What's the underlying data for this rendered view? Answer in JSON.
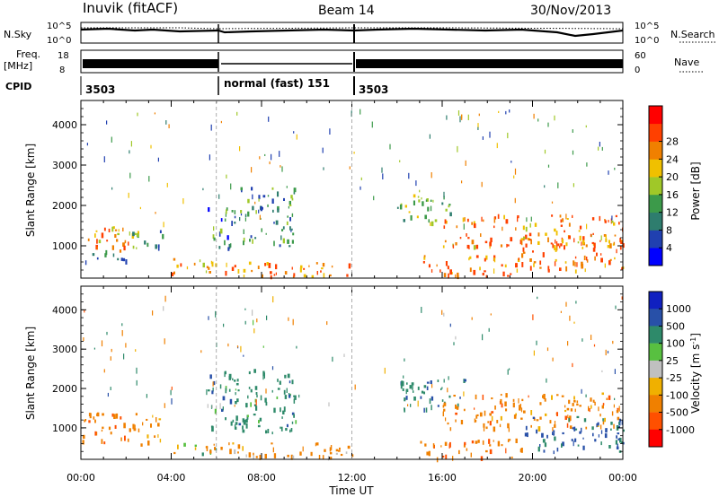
{
  "header": {
    "station": "Inuvik (fitACF)",
    "beam": "Beam 14",
    "date": "30/Nov/2013"
  },
  "summary_panels": {
    "nsky_label": "N.Sky",
    "nsky_ticks": [
      "10^5",
      "10^0"
    ],
    "nsearch_label": "N.Search",
    "nsearch_ticks": [
      "10^5",
      "10^0"
    ],
    "freq_label_top": "Freq.",
    "freq_label_bottom": "[MHz]",
    "freq_ticks": [
      "18",
      "8"
    ],
    "nave_label": "Nave",
    "nave_ticks": [
      "60",
      "0"
    ],
    "cpid_label": "CPID",
    "cpid_segments": [
      {
        "label": "3503",
        "start": 0,
        "end": 6
      },
      {
        "label": "normal (fast) 151",
        "start": 6,
        "end": 12
      },
      {
        "label": "3503",
        "start": 12,
        "end": 24
      }
    ]
  },
  "chart_data": [
    {
      "type": "heatmap",
      "parameter": "power",
      "xlabel": "",
      "ylabel": "Slant Range [km]",
      "xlim": [
        0,
        24
      ],
      "ylim": [
        200,
        4600
      ],
      "x_ticks": [
        "00:00",
        "04:00",
        "08:00",
        "12:00",
        "16:00",
        "20:00",
        "00:00"
      ],
      "y_ticks": [
        1000,
        2000,
        3000,
        4000
      ],
      "colorbar": {
        "label": "Power [dB]",
        "ticks": [
          "4",
          "8",
          "12",
          "16",
          "20",
          "24",
          "28"
        ],
        "colors": [
          "#0000ff",
          "#2040b0",
          "#2e7d6e",
          "#3c9a4a",
          "#a0c828",
          "#f0c000",
          "#f08000",
          "#ff4000",
          "#ff0000"
        ]
      },
      "regions": [
        {
          "t0": 0.0,
          "t1": 2.8,
          "r0": 900,
          "r1": 1500,
          "level": 24
        },
        {
          "t0": 0.0,
          "t1": 2.0,
          "r0": 600,
          "r1": 900,
          "level": 12
        },
        {
          "t0": 2.0,
          "t1": 3.6,
          "r0": 900,
          "r1": 1400,
          "level": 14
        },
        {
          "t0": 4.0,
          "t1": 6.0,
          "r0": 300,
          "r1": 700,
          "level": 22
        },
        {
          "t0": 5.5,
          "t1": 12.0,
          "r0": 250,
          "r1": 650,
          "level": 28
        },
        {
          "t0": 5.6,
          "t1": 6.8,
          "r0": 900,
          "r1": 2000,
          "level": 10
        },
        {
          "t0": 7.0,
          "t1": 9.5,
          "r0": 1000,
          "r1": 2500,
          "level": 12
        },
        {
          "t0": 14.0,
          "t1": 16.5,
          "r0": 1600,
          "r1": 2300,
          "level": 16
        },
        {
          "t0": 16.0,
          "t1": 24.0,
          "r0": 1000,
          "r1": 1800,
          "level": 26
        },
        {
          "t0": 15.0,
          "t1": 19.5,
          "r0": 250,
          "r1": 800,
          "level": 28
        },
        {
          "t0": 19.5,
          "t1": 24.0,
          "r0": 400,
          "r1": 1300,
          "level": 28
        }
      ]
    },
    {
      "type": "heatmap",
      "parameter": "velocity",
      "xlabel": "Time UT",
      "ylabel": "Slant Range [km]",
      "xlim": [
        0,
        24
      ],
      "ylim": [
        200,
        4600
      ],
      "x_ticks": [
        "00:00",
        "04:00",
        "08:00",
        "12:00",
        "16:00",
        "20:00",
        "00:00"
      ],
      "y_ticks": [
        1000,
        2000,
        3000,
        4000
      ],
      "colorbar": {
        "label": "Velocity [m s^-1]",
        "ticks": [
          "1000",
          "500",
          "100",
          "25",
          "-25",
          "-100",
          "-500",
          "-1000"
        ],
        "colors": [
          "#1020c0",
          "#2850a8",
          "#2e8a6a",
          "#58c040",
          "#c0c0c0",
          "#f0b000",
          "#f08000",
          "#ff5000",
          "#ff0000"
        ]
      },
      "regions": [
        {
          "t0": 0.0,
          "t1": 3.6,
          "r0": 600,
          "r1": 1400,
          "level": -300
        },
        {
          "t0": 4.0,
          "t1": 6.0,
          "r0": 300,
          "r1": 700,
          "level": 50
        },
        {
          "t0": 5.5,
          "t1": 12.0,
          "r0": 250,
          "r1": 650,
          "level": -200
        },
        {
          "t0": 5.6,
          "t1": 9.5,
          "r0": 900,
          "r1": 2500,
          "level": 300
        },
        {
          "t0": 14.0,
          "t1": 17.0,
          "r0": 1500,
          "r1": 2300,
          "level": 400
        },
        {
          "t0": 16.0,
          "t1": 24.0,
          "r0": 1000,
          "r1": 1900,
          "level": -300
        },
        {
          "t0": 15.0,
          "t1": 19.5,
          "r0": 250,
          "r1": 750,
          "level": -400
        },
        {
          "t0": 19.5,
          "t1": 24.0,
          "r0": 400,
          "r1": 1300,
          "level": 600
        }
      ]
    }
  ]
}
